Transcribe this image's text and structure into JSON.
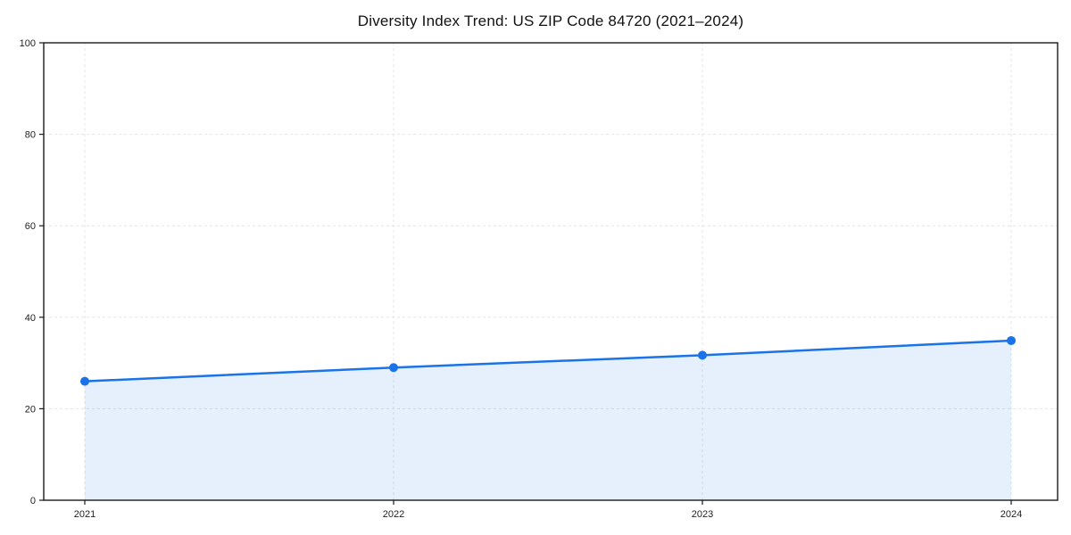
{
  "chart_data": {
    "type": "line",
    "title": "Diversity Index Trend: US ZIP Code 84720 (2021–2024)",
    "xlabel": "",
    "ylabel": "",
    "categories": [
      "2021",
      "2022",
      "2023",
      "2024"
    ],
    "series": [
      {
        "name": "Diversity Index",
        "values": [
          26.0,
          29.0,
          31.7,
          34.9
        ]
      }
    ],
    "ylim": [
      0,
      100
    ],
    "yticks": [
      0,
      20,
      40,
      60,
      80,
      100
    ],
    "grid": "dashed",
    "legend": "none",
    "area_fill": true,
    "colors": {
      "line": "#1a73e8",
      "marker": "#1a73e8",
      "fill": "#1a73e8",
      "fill_opacity": 0.11,
      "grid": "#e4e4e4",
      "axis": "#1a1a1a",
      "tick_label": "#222222",
      "background": "#ffffff"
    }
  }
}
